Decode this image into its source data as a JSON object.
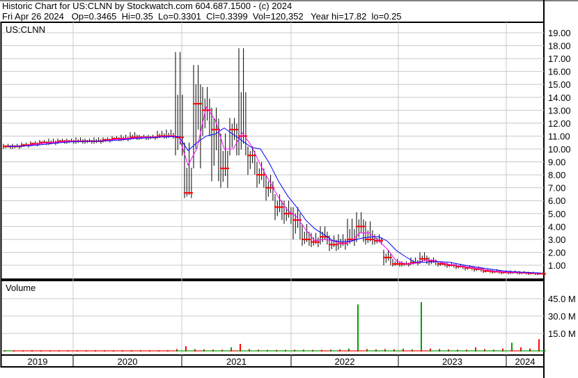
{
  "header": {
    "title": "Historic Chart for US:CLNN by Stockwatch.com 604.687.1500 - (c) 2024",
    "quote": "Fri Apr 26 2024   Op=0.3465  Hi=0.35  Lo=0.3301  Cl=0.3399  Vol=120,352   Year hi=17.82  lo=0.25"
  },
  "chart_data": {
    "type": "line",
    "symbol_label": "US:CLNN",
    "volume_label": "Volume",
    "start_month": "2019-05",
    "x_tick_labels": [
      "2019",
      "2020",
      "2021",
      "2022",
      "2023",
      "2024"
    ],
    "price_ticks": [
      "1.00",
      "2.00",
      "3.00",
      "4.00",
      "5.00",
      "6.00",
      "7.00",
      "8.00",
      "9.00",
      "10.00",
      "11.00",
      "12.00",
      "13.00",
      "14.00",
      "15.00",
      "16.00",
      "17.00",
      "18.00",
      "19.00"
    ],
    "ylim": [
      0,
      20
    ],
    "volume_ticks": [
      "15.0 M",
      "30.0 M",
      "45.0 M"
    ],
    "volume_ylim": [
      0,
      60
    ],
    "close": [
      10.2,
      10.2,
      10.3,
      10.4,
      10.5,
      10.5,
      10.6,
      10.6,
      10.6,
      10.6,
      10.6,
      10.7,
      10.8,
      10.8,
      10.9,
      10.9,
      10.9,
      11.0,
      11.0,
      10.9,
      6.6,
      13.5,
      13.0,
      11.5,
      8.5,
      11.5,
      11.0,
      9.5,
      8.0,
      7.0,
      5.5,
      5.0,
      4.5,
      3.0,
      2.8,
      3.2,
      2.6,
      2.7,
      3.0,
      4.0,
      3.0,
      2.9,
      1.6,
      1.1,
      1.1,
      1.2,
      1.5,
      1.3,
      1.1,
      1.0,
      0.9,
      0.8,
      0.7,
      0.55,
      0.5,
      0.45,
      0.45,
      0.42,
      0.38,
      0.34
    ],
    "high": [
      10.4,
      10.4,
      10.5,
      10.6,
      10.7,
      10.8,
      10.8,
      10.8,
      10.9,
      10.8,
      10.9,
      10.9,
      11.0,
      11.1,
      11.3,
      11.1,
      11.1,
      11.4,
      11.5,
      17.5,
      10.5,
      16.5,
      14.8,
      13.2,
      11.2,
      12.4,
      17.8,
      10.2,
      9.0,
      8.0,
      6.5,
      6.0,
      5.5,
      4.2,
      3.5,
      4.0,
      3.3,
      3.4,
      4.6,
      5.1,
      4.4,
      3.4,
      2.2,
      1.5,
      1.3,
      1.6,
      2.0,
      1.6,
      1.3,
      1.2,
      1.1,
      1.0,
      0.9,
      0.75,
      0.7,
      0.6,
      0.6,
      0.55,
      0.5,
      0.45
    ],
    "low": [
      10.0,
      10.0,
      10.1,
      10.2,
      10.3,
      10.3,
      10.4,
      10.4,
      10.4,
      10.4,
      10.4,
      10.5,
      10.6,
      10.6,
      10.7,
      10.7,
      10.7,
      10.8,
      10.8,
      9.5,
      6.2,
      8.5,
      11.0,
      7.5,
      7.0,
      9.5,
      9.5,
      8.0,
      7.0,
      6.0,
      4.5,
      4.2,
      3.0,
      2.5,
      2.4,
      2.6,
      2.1,
      2.2,
      2.5,
      2.8,
      2.6,
      2.6,
      1.0,
      0.9,
      0.9,
      1.0,
      1.1,
      1.0,
      0.9,
      0.8,
      0.7,
      0.6,
      0.5,
      0.4,
      0.35,
      0.3,
      0.3,
      0.28,
      0.25,
      0.25
    ],
    "volume_m": [
      0.5,
      0.4,
      0.5,
      0.5,
      0.4,
      0.5,
      0.5,
      0.4,
      0.5,
      0.5,
      0.6,
      0.5,
      0.5,
      0.5,
      0.6,
      0.6,
      0.5,
      0.6,
      0.7,
      1.5,
      4.0,
      1.5,
      1.2,
      1.0,
      1.0,
      3.0,
      6.0,
      1.5,
      1.0,
      0.8,
      0.8,
      0.9,
      1.0,
      1.0,
      0.8,
      0.9,
      1.0,
      1.2,
      2.0,
      40.0,
      1.5,
      1.2,
      1.5,
      1.3,
      2.0,
      1.2,
      42.0,
      2.0,
      1.5,
      1.2,
      1.0,
      1.0,
      3.0,
      1.5,
      1.0,
      2.0,
      7.0,
      3.0,
      2.0,
      10.0
    ],
    "colors": {
      "price": "#000000",
      "ma_short": "#ff00ff",
      "ma_long": "#0000ff",
      "close_dots": "#ff0000",
      "vol_up": "#00a000",
      "vol_down": "#ff0000",
      "grid": "#c8c8c8"
    }
  }
}
